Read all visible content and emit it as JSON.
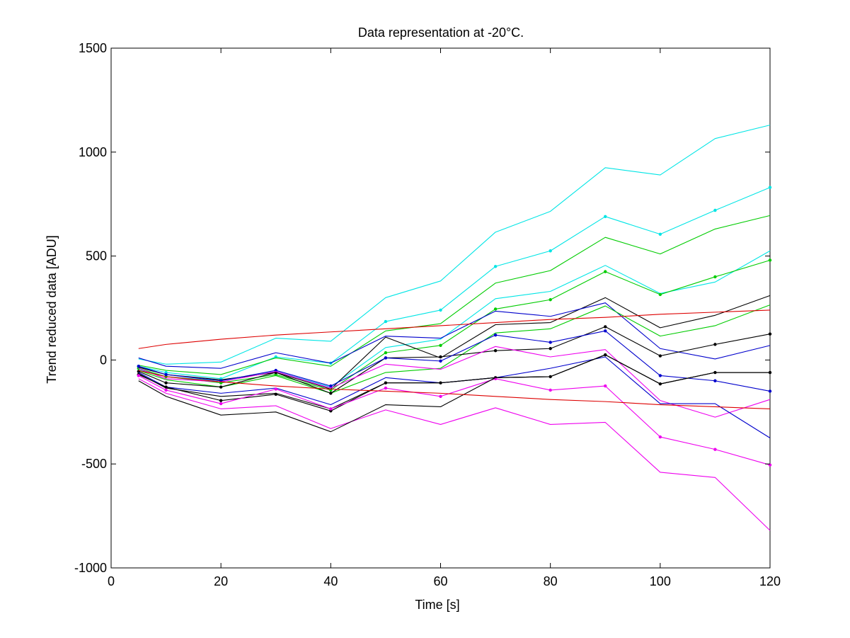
{
  "chart_data": {
    "type": "line",
    "title": "Data representation at -20°C.",
    "xlabel": "Time [s]",
    "ylabel": "Trend reduced data [ADU]",
    "xlim": [
      0,
      120
    ],
    "ylim": [
      -1000,
      1500
    ],
    "x_ticks": [
      0,
      20,
      40,
      60,
      80,
      100,
      120
    ],
    "y_ticks": [
      -1000,
      -500,
      0,
      500,
      1000,
      1500
    ],
    "x_tick_labels": [
      "0",
      "20",
      "40",
      "60",
      "80",
      "100",
      "120"
    ],
    "y_tick_labels": [
      "-1000",
      "-500",
      "0",
      "500",
      "1000",
      "1500"
    ],
    "grid": false,
    "legend": "none",
    "x": [
      5,
      10,
      20,
      30,
      40,
      50,
      60,
      70,
      80,
      90,
      100,
      110,
      120
    ],
    "series": [
      {
        "color": "#00e5e5",
        "marker": false,
        "values": [
          5,
          -20,
          -10,
          105,
          90,
          300,
          380,
          615,
          715,
          925,
          890,
          1065,
          1130
        ]
      },
      {
        "color": "#00e5e5",
        "marker": true,
        "values": [
          -30,
          -60,
          -90,
          15,
          -15,
          185,
          240,
          450,
          525,
          690,
          605,
          720,
          830
        ]
      },
      {
        "color": "#00cc00",
        "marker": false,
        "values": [
          -25,
          -50,
          -70,
          10,
          -30,
          140,
          175,
          370,
          430,
          590,
          510,
          630,
          695
        ]
      },
      {
        "color": "#00e5e5",
        "marker": false,
        "values": [
          -45,
          -80,
          -100,
          -55,
          -130,
          60,
          100,
          295,
          330,
          455,
          320,
          375,
          525
        ]
      },
      {
        "color": "#00cc00",
        "marker": true,
        "values": [
          -40,
          -80,
          -110,
          -70,
          -145,
          35,
          70,
          245,
          290,
          425,
          315,
          400,
          480
        ]
      },
      {
        "color": "#000000",
        "marker": false,
        "values": [
          -35,
          -70,
          -95,
          -60,
          -140,
          110,
          10,
          170,
          180,
          300,
          155,
          215,
          310
        ]
      },
      {
        "color": "#0000cc",
        "marker": false,
        "values": [
          10,
          -30,
          -40,
          35,
          -15,
          115,
          105,
          235,
          210,
          275,
          55,
          5,
          70
        ]
      },
      {
        "color": "#00cc00",
        "marker": false,
        "values": [
          -50,
          -95,
          -130,
          -75,
          -160,
          -60,
          -40,
          130,
          150,
          260,
          115,
          165,
          265
        ]
      },
      {
        "color": "#000000",
        "marker": true,
        "values": [
          -55,
          -110,
          -130,
          -60,
          -160,
          10,
          15,
          45,
          55,
          160,
          20,
          75,
          125
        ]
      },
      {
        "color": "#0000cc",
        "marker": true,
        "values": [
          -30,
          -70,
          -100,
          -50,
          -125,
          10,
          -5,
          120,
          85,
          140,
          -75,
          -100,
          -150
        ]
      },
      {
        "color": "#ee00ee",
        "marker": false,
        "values": [
          -40,
          -90,
          -105,
          -55,
          -135,
          -20,
          -45,
          65,
          15,
          50,
          -195,
          -275,
          -190
        ]
      },
      {
        "color": "#0000cc",
        "marker": false,
        "values": [
          -60,
          -130,
          -160,
          -135,
          -215,
          -85,
          -110,
          -85,
          -40,
          15,
          -210,
          -210,
          -375
        ]
      },
      {
        "color": "#000000",
        "marker": false,
        "values": [
          -65,
          -135,
          -175,
          -160,
          -235,
          -110,
          -110,
          -85,
          -80,
          25,
          -115,
          -60,
          -60
        ]
      },
      {
        "color": "#000000",
        "marker": true,
        "values": [
          -70,
          -130,
          -195,
          -165,
          -245,
          -110,
          -110,
          -85,
          -80,
          25,
          -115,
          -60,
          -60
        ]
      },
      {
        "color": "#ee00ee",
        "marker": true,
        "values": [
          -75,
          -145,
          -210,
          -140,
          -235,
          -135,
          -175,
          -90,
          -145,
          -125,
          -370,
          -430,
          -505
        ]
      },
      {
        "color": "#ee00ee",
        "marker": false,
        "values": [
          -90,
          -160,
          -235,
          -220,
          -330,
          -240,
          -310,
          -230,
          -310,
          -300,
          -540,
          -565,
          -820
        ]
      },
      {
        "color": "#000000",
        "marker": false,
        "values": [
          -100,
          -175,
          -265,
          -250,
          -345,
          -215,
          -225,
          -85,
          -80,
          25,
          -115,
          -60,
          -60
        ]
      },
      {
        "color": "#dd0000",
        "marker": false,
        "values": [
          55,
          75,
          100,
          120,
          135,
          150,
          165,
          180,
          195,
          205,
          220,
          230,
          240
        ]
      },
      {
        "color": "#dd0000",
        "marker": false,
        "values": [
          -50,
          -80,
          -105,
          -125,
          -140,
          -150,
          -160,
          -175,
          -190,
          -200,
          -215,
          -225,
          -235
        ]
      }
    ]
  }
}
